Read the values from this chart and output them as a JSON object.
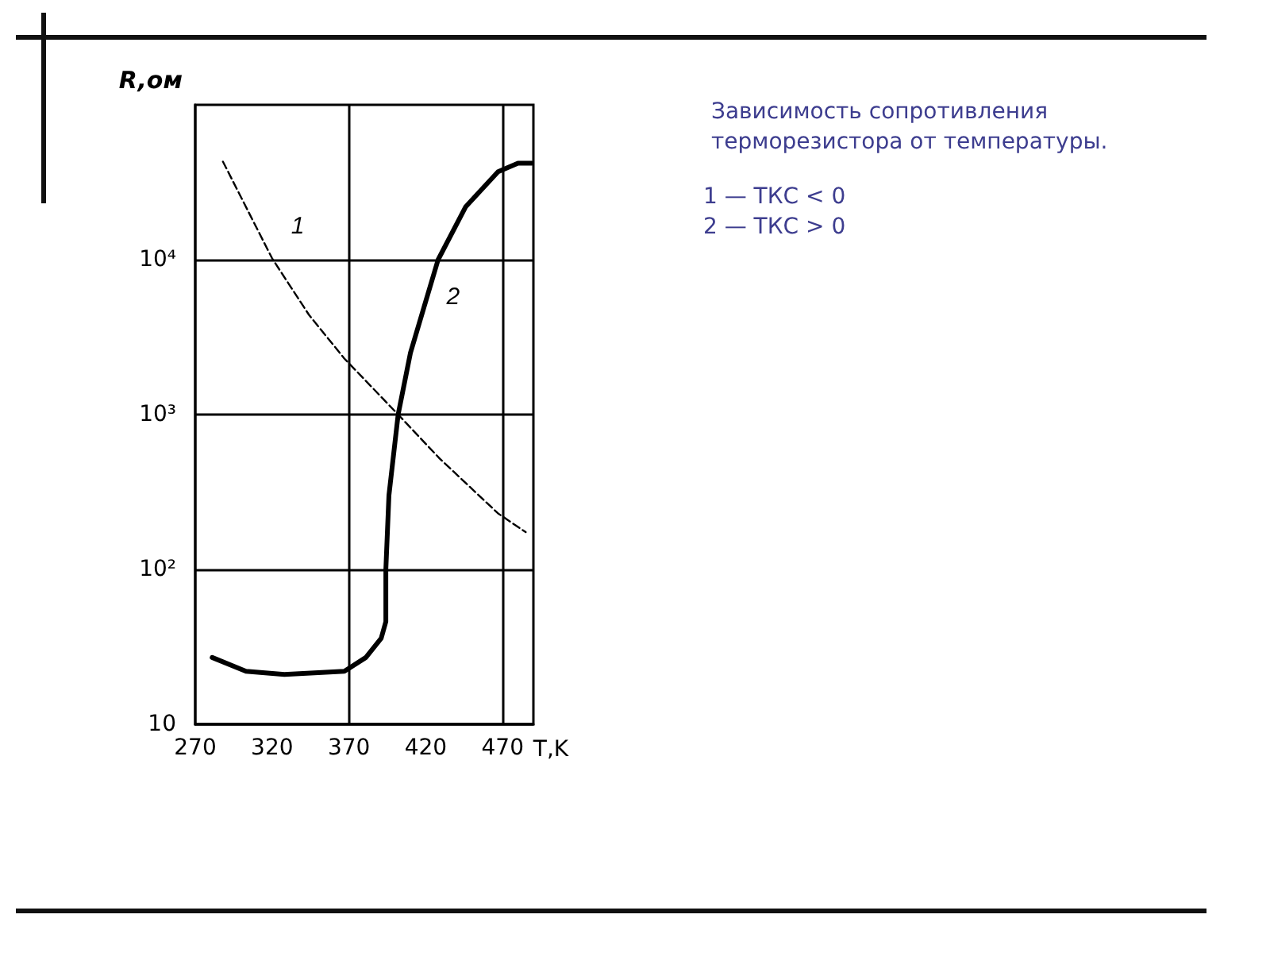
{
  "chart_data": {
    "type": "line",
    "title": "Зависимость сопротивления\nтерморезистора от температуры.",
    "annotations": [
      "1 — ТКС < 0",
      "2 — ТКС > 0"
    ],
    "xlabel": "T,K",
    "ylabel": "R,ом",
    "log": "y",
    "xlim": [
      270,
      490
    ],
    "ylim": [
      10,
      100000
    ],
    "xticks": [
      270,
      320,
      370,
      420,
      470
    ],
    "yticks": [
      {
        "value": 10,
        "label": "10"
      },
      {
        "value": 100,
        "label": "10²"
      },
      {
        "value": 1000,
        "label": "10³"
      },
      {
        "value": 10000,
        "label": "10⁴"
      }
    ],
    "grid": "y",
    "ref_lines": [
      {
        "axis": "x",
        "value": 370,
        "color": "#000000"
      },
      {
        "axis": "x",
        "value": 470,
        "color": "#000000"
      }
    ],
    "marker": "none",
    "legend": false,
    "series": [
      {
        "name": "1",
        "color": "#000000",
        "line_style": "dashed",
        "x": [
          288,
          320,
          344,
          367,
          402,
          429,
          467,
          485
        ],
        "values": [
          43000,
          10200,
          4400,
          2300,
          1000,
          520,
          230,
          174
        ]
      },
      {
        "name": "2",
        "color": "#000000",
        "line_style": "solid",
        "x": [
          281,
          303,
          328,
          367,
          381,
          391,
          394,
          394,
          396,
          402,
          410,
          419,
          428,
          446,
          467,
          480,
          489
        ],
        "values": [
          27,
          22,
          21,
          22,
          27,
          36,
          46,
          100,
          300,
          1000,
          2500,
          5000,
          10000,
          22000,
          37000,
          42000,
          42000
        ]
      }
    ]
  }
}
